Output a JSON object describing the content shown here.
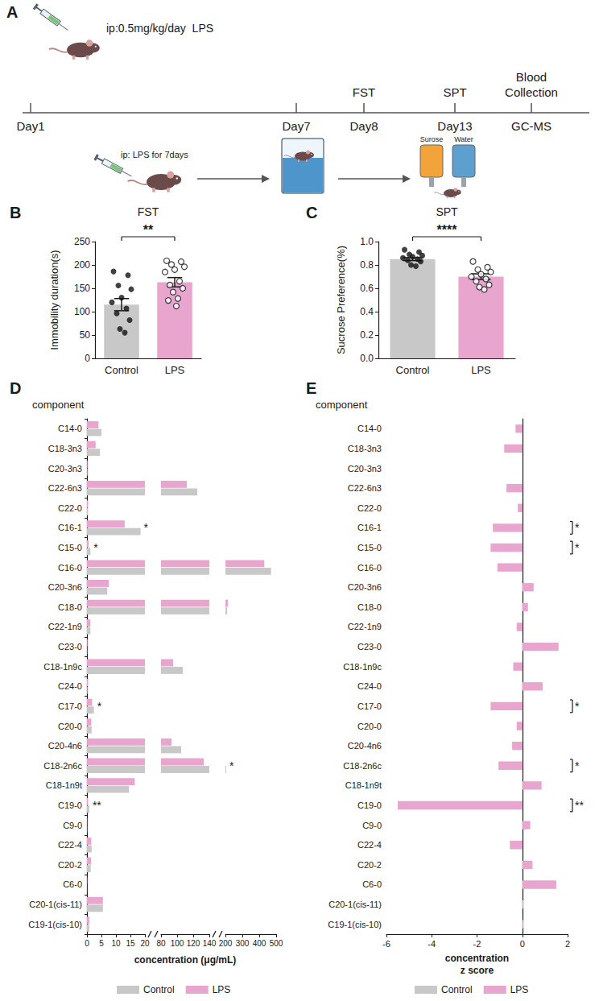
{
  "diagram": {
    "panel_label": "A",
    "dose": "ip:0.5mg/kg/day  LPS",
    "timeline": [
      "Day1",
      "Day7",
      "Day8",
      "Day13",
      "GC-MS"
    ],
    "events": [
      {
        "at": "Day8",
        "label": "FST"
      },
      {
        "at": "Day13",
        "label": "SPT"
      },
      {
        "at": "GC-MS",
        "label": "Blood Collection"
      }
    ],
    "injection": "ip: LPS for 7days",
    "bottles": [
      {
        "label": "Surose",
        "color": "#f2a33a"
      },
      {
        "label": "Water",
        "color": "#5d9fcf"
      }
    ]
  },
  "chart_data": [
    {
      "panel_label": "B",
      "type": "bar",
      "title": "FST",
      "y_label": "Immobility duration(s)",
      "categories": [
        "Control",
        "LPS"
      ],
      "values": [
        115,
        163
      ],
      "errors": [
        13,
        10
      ],
      "colors": [
        "#c8c8c8",
        "#e8a6cf"
      ],
      "points": [
        [
          186,
          178,
          156,
          148,
          130,
          120,
          107,
          96,
          82,
          63,
          55
        ],
        [
          209,
          207,
          201,
          196,
          190,
          185,
          165,
          157,
          150,
          142,
          128,
          124,
          112
        ]
      ],
      "ylim": [
        0,
        250
      ],
      "yticks": [
        0,
        50,
        100,
        150,
        200,
        250
      ],
      "significance": "**"
    },
    {
      "panel_label": "C",
      "type": "bar",
      "title": "SPT",
      "y_label": "Sucrose Preference(%)",
      "categories": [
        "Control",
        "LPS"
      ],
      "values": [
        0.85,
        0.7
      ],
      "errors": [
        0.013,
        0.024
      ],
      "colors": [
        "#c8c8c8",
        "#e8a6cf"
      ],
      "points": [
        [
          0.93,
          0.91,
          0.89,
          0.88,
          0.87,
          0.86,
          0.85,
          0.84,
          0.83,
          0.8,
          0.79
        ],
        [
          0.83,
          0.78,
          0.76,
          0.74,
          0.72,
          0.7,
          0.68,
          0.66,
          0.63,
          0.61,
          0.59
        ]
      ],
      "ylim": [
        0,
        1
      ],
      "yticks": [
        {
          "value": 0,
          "label": "0.0"
        },
        0.2,
        0.4,
        0.6,
        0.8,
        {
          "value": 1,
          "label": "1.0"
        }
      ],
      "significance": "****"
    },
    {
      "panel_label": "D",
      "type": "bar",
      "orientation": "horizontal",
      "title": "component",
      "x_label": "concentration (μg/mL)",
      "categories": [
        "C14-0",
        "C18-3n3",
        "C20-3n3",
        "C22-6n3",
        "C22-0",
        "C16-1",
        "C15-0",
        "C16-0",
        "C20-3n6",
        "C18-0",
        "C22-1n9",
        "C23-0",
        "C18-1n9c",
        "C24-0",
        "C17-0",
        "C20-0",
        "C20-4n6",
        "C18-2n6c",
        "C18-1n9t",
        "C19-0",
        "C9-0",
        "C22-4",
        "C20-2",
        "C6-0",
        "C20-1(cis-11)",
        "C19-1(cis-10)"
      ],
      "series": [
        {
          "name": "Control",
          "color": "#c8c8c8",
          "values": [
            5,
            4.5,
            0.2,
            125,
            0.3,
            18.5,
            1.2,
            470,
            7,
            210,
            1.2,
            0.1,
            107,
            0.2,
            2.4,
            1.6,
            105,
            205,
            14.5,
            0.8,
            0.1,
            1.6,
            1.3,
            0.05,
            5.5,
            0.8
          ]
        },
        {
          "name": "LPS",
          "color": "#e8a6cf",
          "values": [
            4,
            3,
            0.2,
            112,
            0.3,
            13,
            0.6,
            430,
            7.5,
            215,
            1.2,
            0.2,
            95,
            0.3,
            1.8,
            1.5,
            93,
            133,
            16.5,
            0.3,
            0.1,
            1.5,
            1.4,
            0.1,
            5.5,
            0.8
          ]
        }
      ],
      "xlim": [
        [
          0,
          20
        ],
        [
          80,
          140
        ],
        [
          200,
          500
        ]
      ],
      "xticks": [
        [
          0,
          5,
          10,
          15,
          20
        ],
        [
          80,
          100,
          120,
          140
        ],
        [
          200,
          300,
          400,
          500
        ]
      ],
      "annotations": [
        {
          "category": "C16-1",
          "text": "*"
        },
        {
          "category": "C15-0",
          "text": "*"
        },
        {
          "category": "C17-0",
          "text": "*"
        },
        {
          "category": "C18-2n6c",
          "text": "*"
        },
        {
          "category": "C19-0",
          "text": "**"
        }
      ],
      "legend": "bottom"
    },
    {
      "panel_label": "E",
      "type": "bar",
      "orientation": "horizontal",
      "title": "component",
      "x_label": "concentration\nz score",
      "categories": [
        "C14-0",
        "C18-3n3",
        "C20-3n3",
        "C22-6n3",
        "C22-0",
        "C16-1",
        "C15-0",
        "C16-0",
        "C20-3n6",
        "C18-0",
        "C22-1n9",
        "C23-0",
        "C18-1n9c",
        "C24-0",
        "C17-0",
        "C20-0",
        "C20-4n6",
        "C18-2n6c",
        "C18-1n9t",
        "C19-0",
        "C9-0",
        "C22-4",
        "C20-2",
        "C6-0",
        "C20-1(cis-11)",
        "C19-1(cis-10)"
      ],
      "series": [
        {
          "name": "Control",
          "color": "#c8c8c8",
          "values": [
            0,
            0,
            0,
            0,
            0,
            0,
            0,
            0,
            0,
            0,
            0,
            0,
            0,
            0,
            0,
            0,
            0,
            0,
            0,
            0,
            0,
            0,
            0,
            0,
            0,
            0
          ]
        },
        {
          "name": "LPS",
          "color": "#e8a6cf",
          "values": [
            -0.3,
            -0.8,
            0,
            -0.7,
            -0.2,
            -1.3,
            -1.4,
            -1.1,
            0.5,
            0.25,
            -0.25,
            1.6,
            -0.4,
            0.9,
            -1.4,
            -0.25,
            -0.45,
            -1.05,
            0.85,
            -5.5,
            0.35,
            -0.55,
            0.45,
            1.5,
            0.05,
            0.05
          ]
        }
      ],
      "xlim": [
        -6,
        2
      ],
      "xticks": [
        -6,
        -4,
        -2,
        0,
        2
      ],
      "annotations": [
        {
          "category": "C16-1",
          "text": "*"
        },
        {
          "category": "C15-0",
          "text": "*"
        },
        {
          "category": "C17-0",
          "text": "*"
        },
        {
          "category": "C18-2n6c",
          "text": "*"
        },
        {
          "category": "C19-0",
          "text": "**"
        }
      ],
      "legend": "bottom"
    }
  ]
}
